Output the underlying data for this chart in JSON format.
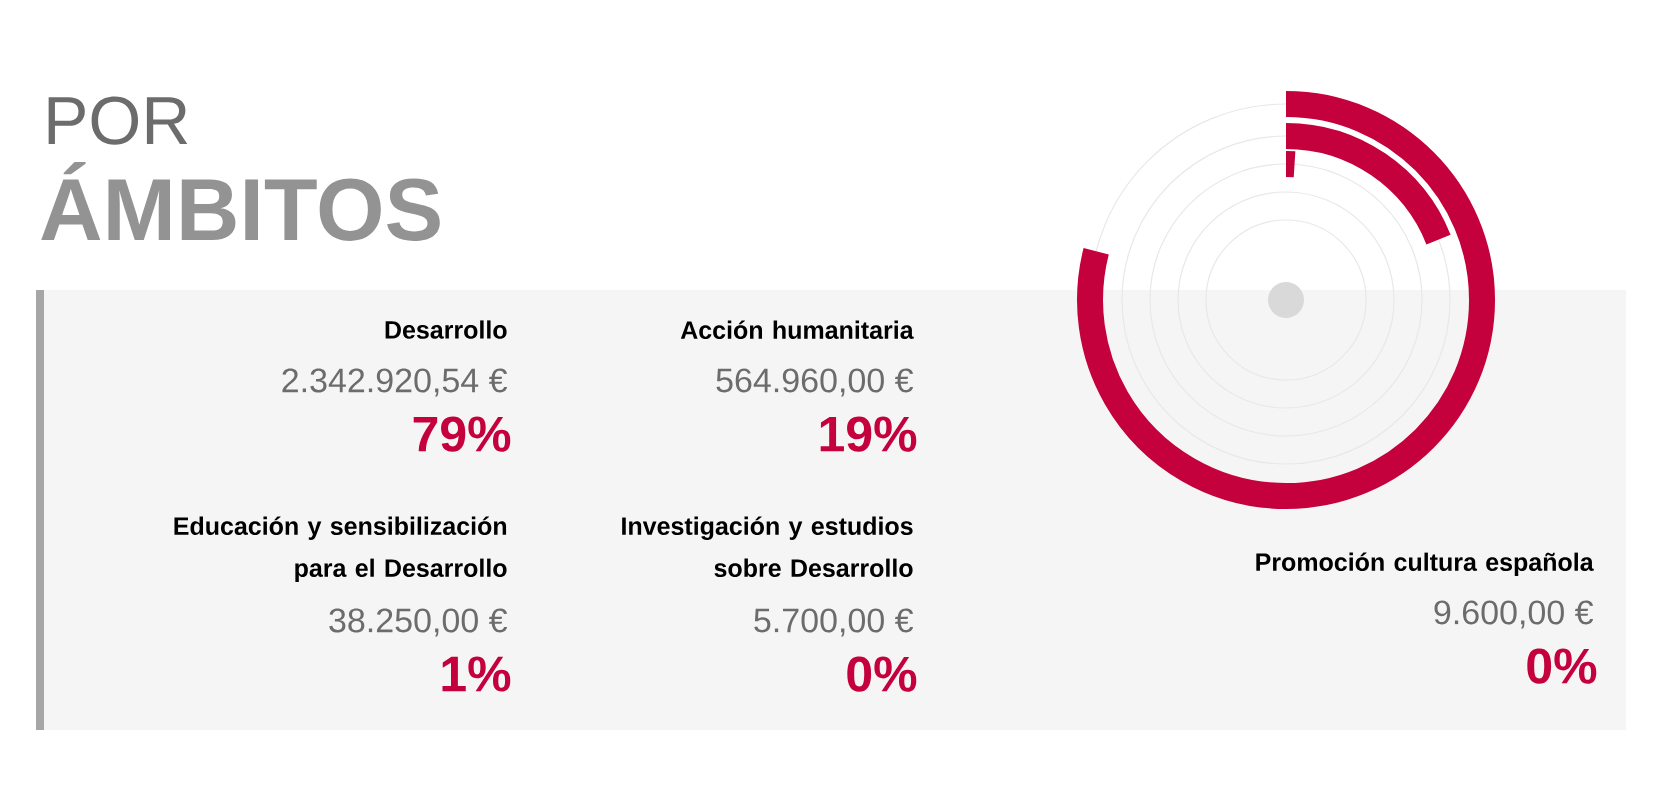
{
  "chart_data": {
    "type": "other",
    "title": "POR",
    "subtitle": "ÁMBITOS",
    "categories": [
      "Desarrollo",
      "Acción humanitaria",
      "Educación y sensibilización para el Desarrollo",
      "Investigación y estudios sobre Desarrollo",
      "Promoción cultura española"
    ],
    "values": [
      79,
      19,
      1,
      0,
      0
    ],
    "value_labels": [
      "79%",
      "19%",
      "1%",
      "0%",
      "0%"
    ],
    "annotations": [
      "2.342.920,54 €",
      "564.960,00 €",
      "38.250,00 €",
      "5.700,00 €",
      "9.600,00 €"
    ],
    "color": "#c4003d"
  }
}
